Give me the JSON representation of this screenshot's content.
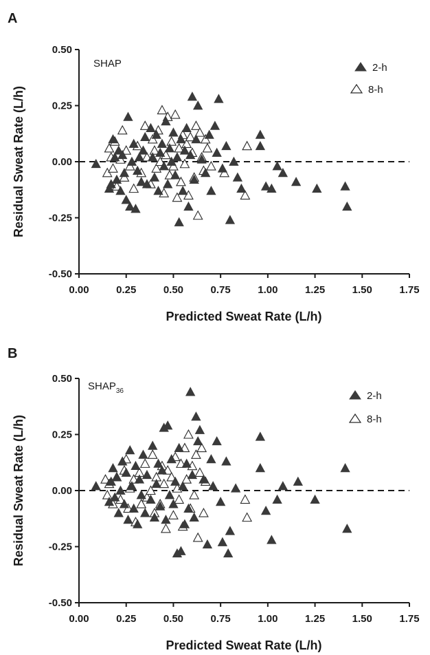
{
  "colors": {
    "filled": "#3a3a3a",
    "open_stroke": "#2a2a2a",
    "axis": "#1a1a1a"
  },
  "chart_data": [
    {
      "type": "scatter",
      "panel_letter": "A",
      "panel_label": "SHAP",
      "panel_label_sub": "",
      "xlabel": "Predicted Sweat Rate (L/h)",
      "ylabel": "Residual Sweat Rate (L/h)",
      "xlim": [
        0,
        1.75
      ],
      "ylim": [
        -0.5,
        0.5
      ],
      "x_ticks": [
        "0.00",
        "0.25",
        "0.50",
        "0.75",
        "1.00",
        "1.25",
        "1.50",
        "1.75"
      ],
      "y_ticks": [
        "-0.50",
        "-0.25",
        "0.00",
        "0.25",
        "0.50"
      ],
      "reference_line": {
        "y": 0.0,
        "style": "dashed"
      },
      "legend_position": "top-right",
      "series": [
        {
          "name": "2-h",
          "marker": "filled-triangle",
          "points": [
            [
              0.09,
              -0.01
            ],
            [
              0.16,
              -0.12
            ],
            [
              0.17,
              -0.1
            ],
            [
              0.18,
              0.1
            ],
            [
              0.19,
              0.02
            ],
            [
              0.2,
              -0.08
            ],
            [
              0.21,
              0.05
            ],
            [
              0.22,
              -0.13
            ],
            [
              0.23,
              0.03
            ],
            [
              0.24,
              -0.05
            ],
            [
              0.25,
              -0.17
            ],
            [
              0.26,
              0.2
            ],
            [
              0.27,
              -0.2
            ],
            [
              0.28,
              0.0
            ],
            [
              0.29,
              0.08
            ],
            [
              0.3,
              -0.21
            ],
            [
              0.31,
              -0.04
            ],
            [
              0.32,
              0.02
            ],
            [
              0.33,
              -0.09
            ],
            [
              0.34,
              0.05
            ],
            [
              0.35,
              0.11
            ],
            [
              0.36,
              -0.1
            ],
            [
              0.38,
              0.15
            ],
            [
              0.39,
              0.02
            ],
            [
              0.4,
              -0.07
            ],
            [
              0.41,
              0.12
            ],
            [
              0.42,
              -0.13
            ],
            [
              0.43,
              0.04
            ],
            [
              0.44,
              0.08
            ],
            [
              0.45,
              -0.02
            ],
            [
              0.46,
              0.18
            ],
            [
              0.47,
              -0.1
            ],
            [
              0.48,
              0.06
            ],
            [
              0.49,
              0.0
            ],
            [
              0.5,
              0.13
            ],
            [
              0.51,
              -0.06
            ],
            [
              0.52,
              0.02
            ],
            [
              0.53,
              -0.27
            ],
            [
              0.54,
              0.1
            ],
            [
              0.55,
              -0.13
            ],
            [
              0.56,
              0.05
            ],
            [
              0.57,
              0.15
            ],
            [
              0.58,
              -0.2
            ],
            [
              0.59,
              0.03
            ],
            [
              0.6,
              0.29
            ],
            [
              0.61,
              -0.08
            ],
            [
              0.62,
              0.1
            ],
            [
              0.63,
              0.25
            ],
            [
              0.65,
              0.01
            ],
            [
              0.67,
              -0.05
            ],
            [
              0.69,
              0.12
            ],
            [
              0.7,
              -0.13
            ],
            [
              0.72,
              0.16
            ],
            [
              0.73,
              0.04
            ],
            [
              0.74,
              0.28
            ],
            [
              0.76,
              -0.03
            ],
            [
              0.78,
              0.07
            ],
            [
              0.8,
              -0.26
            ],
            [
              0.82,
              0.0
            ],
            [
              0.84,
              -0.07
            ],
            [
              0.86,
              -0.12
            ],
            [
              0.96,
              0.12
            ],
            [
              0.96,
              0.07
            ],
            [
              0.99,
              -0.11
            ],
            [
              1.02,
              -0.12
            ],
            [
              1.05,
              -0.02
            ],
            [
              1.08,
              -0.05
            ],
            [
              1.15,
              -0.09
            ],
            [
              1.26,
              -0.12
            ],
            [
              1.41,
              -0.11
            ],
            [
              1.42,
              -0.2
            ]
          ]
        },
        {
          "name": "8-h",
          "marker": "open-triangle",
          "points": [
            [
              0.15,
              -0.05
            ],
            [
              0.16,
              0.06
            ],
            [
              0.17,
              0.02
            ],
            [
              0.18,
              -0.03
            ],
            [
              0.19,
              0.09
            ],
            [
              0.2,
              -0.11
            ],
            [
              0.22,
              0.01
            ],
            [
              0.23,
              0.14
            ],
            [
              0.24,
              -0.07
            ],
            [
              0.25,
              0.05
            ],
            [
              0.27,
              -0.02
            ],
            [
              0.29,
              -0.12
            ],
            [
              0.31,
              0.07
            ],
            [
              0.33,
              -0.05
            ],
            [
              0.35,
              0.16
            ],
            [
              0.36,
              0.02
            ],
            [
              0.38,
              -0.1
            ],
            [
              0.39,
              0.1
            ],
            [
              0.4,
              0.05
            ],
            [
              0.41,
              -0.03
            ],
            [
              0.42,
              0.14
            ],
            [
              0.43,
              0.0
            ],
            [
              0.44,
              0.23
            ],
            [
              0.45,
              -0.14
            ],
            [
              0.46,
              0.03
            ],
            [
              0.47,
              0.2
            ],
            [
              0.48,
              -0.06
            ],
            [
              0.49,
              0.09
            ],
            [
              0.5,
              -0.02
            ],
            [
              0.51,
              0.21
            ],
            [
              0.52,
              -0.16
            ],
            [
              0.53,
              0.06
            ],
            [
              0.54,
              -0.09
            ],
            [
              0.55,
              0.12
            ],
            [
              0.56,
              -0.01
            ],
            [
              0.57,
              0.08
            ],
            [
              0.58,
              -0.15
            ],
            [
              0.59,
              0.11
            ],
            [
              0.6,
              0.04
            ],
            [
              0.61,
              -0.07
            ],
            [
              0.62,
              0.16
            ],
            [
              0.63,
              -0.24
            ],
            [
              0.64,
              0.13
            ],
            [
              0.65,
              0.02
            ],
            [
              0.66,
              -0.04
            ],
            [
              0.67,
              0.1
            ],
            [
              0.68,
              0.06
            ],
            [
              0.7,
              -0.02
            ],
            [
              0.77,
              -0.05
            ],
            [
              0.88,
              -0.15
            ],
            [
              0.89,
              0.07
            ]
          ]
        }
      ]
    },
    {
      "type": "scatter",
      "panel_letter": "B",
      "panel_label": "SHAP",
      "panel_label_sub": "36",
      "xlabel": "Predicted Sweat Rate (L/h)",
      "ylabel": "Residual Sweat Rate (L/h)",
      "xlim": [
        0,
        1.75
      ],
      "ylim": [
        -0.5,
        0.5
      ],
      "x_ticks": [
        "0.00",
        "0.25",
        "0.50",
        "0.75",
        "1.00",
        "1.25",
        "1.50",
        "1.75"
      ],
      "y_ticks": [
        "-0.50",
        "-0.25",
        "0.00",
        "0.25",
        "0.50"
      ],
      "reference_line": {
        "y": 0.0,
        "style": "dashed"
      },
      "legend_position": "top-right",
      "series": [
        {
          "name": "2-h",
          "marker": "filled-triangle",
          "points": [
            [
              0.09,
              0.02
            ],
            [
              0.16,
              -0.05
            ],
            [
              0.17,
              0.04
            ],
            [
              0.18,
              0.1
            ],
            [
              0.19,
              -0.03
            ],
            [
              0.2,
              0.06
            ],
            [
              0.21,
              -0.1
            ],
            [
              0.22,
              0.0
            ],
            [
              0.23,
              0.13
            ],
            [
              0.24,
              -0.06
            ],
            [
              0.25,
              0.08
            ],
            [
              0.26,
              -0.13
            ],
            [
              0.27,
              0.18
            ],
            [
              0.28,
              0.02
            ],
            [
              0.29,
              -0.08
            ],
            [
              0.3,
              0.11
            ],
            [
              0.31,
              -0.15
            ],
            [
              0.32,
              0.05
            ],
            [
              0.33,
              -0.02
            ],
            [
              0.34,
              0.16
            ],
            [
              0.35,
              -0.1
            ],
            [
              0.36,
              0.07
            ],
            [
              0.38,
              -0.04
            ],
            [
              0.39,
              0.2
            ],
            [
              0.4,
              -0.12
            ],
            [
              0.41,
              0.03
            ],
            [
              0.42,
              0.12
            ],
            [
              0.43,
              -0.07
            ],
            [
              0.44,
              0.09
            ],
            [
              0.45,
              0.28
            ],
            [
              0.46,
              -0.13
            ],
            [
              0.47,
              0.29
            ],
            [
              0.48,
              -0.02
            ],
            [
              0.49,
              0.14
            ],
            [
              0.5,
              -0.06
            ],
            [
              0.51,
              0.04
            ],
            [
              0.52,
              -0.28
            ],
            [
              0.53,
              0.19
            ],
            [
              0.54,
              -0.27
            ],
            [
              0.55,
              0.02
            ],
            [
              0.56,
              -0.15
            ],
            [
              0.57,
              0.12
            ],
            [
              0.58,
              -0.08
            ],
            [
              0.59,
              0.44
            ],
            [
              0.6,
              0.07
            ],
            [
              0.61,
              -0.12
            ],
            [
              0.62,
              0.33
            ],
            [
              0.63,
              0.22
            ],
            [
              0.64,
              0.27
            ],
            [
              0.66,
              0.05
            ],
            [
              0.68,
              -0.24
            ],
            [
              0.7,
              0.14
            ],
            [
              0.71,
              0.02
            ],
            [
              0.73,
              0.22
            ],
            [
              0.75,
              -0.05
            ],
            [
              0.76,
              -0.23
            ],
            [
              0.78,
              0.13
            ],
            [
              0.79,
              -0.28
            ],
            [
              0.8,
              -0.18
            ],
            [
              0.83,
              0.01
            ],
            [
              0.96,
              0.24
            ],
            [
              0.96,
              0.1
            ],
            [
              0.99,
              -0.09
            ],
            [
              1.02,
              -0.22
            ],
            [
              1.05,
              -0.04
            ],
            [
              1.08,
              0.02
            ],
            [
              1.16,
              0.04
            ],
            [
              1.25,
              -0.04
            ],
            [
              1.41,
              0.1
            ],
            [
              1.42,
              -0.17
            ]
          ]
        },
        {
          "name": "8-h",
          "marker": "open-triangle",
          "points": [
            [
              0.14,
              0.05
            ],
            [
              0.15,
              -0.02
            ],
            [
              0.16,
              0.03
            ],
            [
              0.18,
              -0.06
            ],
            [
              0.2,
              0.06
            ],
            [
              0.22,
              -0.04
            ],
            [
              0.24,
              0.09
            ],
            [
              0.25,
              0.14
            ],
            [
              0.26,
              -0.08
            ],
            [
              0.27,
              0.01
            ],
            [
              0.29,
              0.05
            ],
            [
              0.3,
              -0.14
            ],
            [
              0.32,
              0.08
            ],
            [
              0.33,
              -0.06
            ],
            [
              0.35,
              0.12
            ],
            [
              0.36,
              -0.03
            ],
            [
              0.38,
              0.0
            ],
            [
              0.39,
              0.16
            ],
            [
              0.4,
              -0.1
            ],
            [
              0.41,
              0.06
            ],
            [
              0.43,
              -0.06
            ],
            [
              0.44,
              0.11
            ],
            [
              0.45,
              0.03
            ],
            [
              0.46,
              -0.17
            ],
            [
              0.47,
              0.09
            ],
            [
              0.49,
              0.06
            ],
            [
              0.5,
              -0.11
            ],
            [
              0.51,
              0.15
            ],
            [
              0.52,
              0.01
            ],
            [
              0.53,
              -0.04
            ],
            [
              0.54,
              0.12
            ],
            [
              0.55,
              -0.16
            ],
            [
              0.56,
              0.19
            ],
            [
              0.57,
              0.05
            ],
            [
              0.58,
              0.25
            ],
            [
              0.59,
              -0.08
            ],
            [
              0.6,
              0.11
            ],
            [
              0.61,
              -0.02
            ],
            [
              0.62,
              0.16
            ],
            [
              0.63,
              -0.21
            ],
            [
              0.64,
              0.08
            ],
            [
              0.65,
              0.19
            ],
            [
              0.66,
              -0.1
            ],
            [
              0.67,
              0.04
            ],
            [
              0.88,
              -0.04
            ],
            [
              0.89,
              -0.12
            ]
          ]
        }
      ]
    }
  ]
}
